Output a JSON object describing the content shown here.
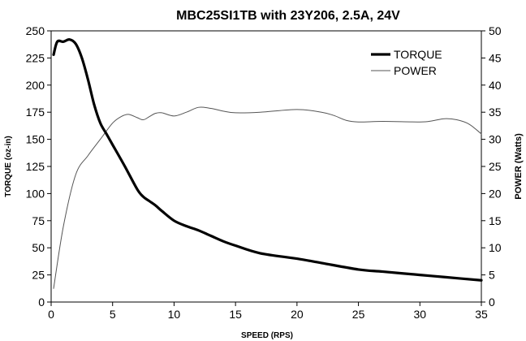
{
  "chart_data": {
    "type": "line",
    "title": "MBC25SI1TB with 23Y206, 2.5A, 24V",
    "xlabel": "SPEED (RPS)",
    "ylabel": "TORQUE (oz-in)",
    "y2label": "POWER (Watts)",
    "xlim": [
      0,
      35
    ],
    "ylim": [
      0,
      250
    ],
    "y2lim": [
      0,
      50
    ],
    "xticks": [
      0,
      5,
      10,
      15,
      20,
      25,
      30,
      35
    ],
    "yticks": [
      0,
      25,
      50,
      75,
      100,
      125,
      150,
      175,
      200,
      225,
      250
    ],
    "y2ticks": [
      0,
      5,
      10,
      15,
      20,
      25,
      30,
      35,
      40,
      45,
      50
    ],
    "grid": false,
    "legend": "top-right",
    "series": [
      {
        "name": "TORQUE",
        "axis": "left",
        "color": "#000000",
        "x": [
          0.2,
          0.5,
          1.0,
          1.5,
          2.0,
          2.5,
          3.0,
          3.5,
          4.0,
          4.5,
          5.0,
          6.0,
          7.0,
          7.5,
          8.0,
          8.5,
          9.0,
          10.0,
          11.0,
          12.0,
          13.0,
          14.0,
          15.0,
          17.0,
          20.0,
          22.0,
          25.0,
          27.0,
          30.0,
          32.0,
          35.0
        ],
        "values": [
          228,
          240,
          240,
          242,
          238,
          225,
          205,
          182,
          165,
          155,
          145,
          125,
          104,
          97,
          93,
          89,
          84,
          75,
          70,
          66,
          61,
          56,
          52,
          45,
          40,
          36,
          30,
          28,
          25,
          23,
          20
        ]
      },
      {
        "name": "POWER",
        "axis": "right",
        "color": "#555555",
        "x": [
          0.2,
          1.0,
          2.0,
          3.0,
          4.0,
          5.0,
          5.7,
          6.3,
          7.0,
          7.5,
          8.0,
          8.5,
          9.0,
          10.0,
          11.0,
          12.0,
          13.0,
          14.0,
          15.0,
          17.0,
          20.0,
          22.0,
          23.0,
          24.0,
          25.0,
          27.0,
          30.0,
          31.0,
          32.0,
          33.0,
          34.0,
          35.0
        ],
        "values": [
          2.5,
          14,
          23.5,
          27,
          30,
          33,
          34.2,
          34.6,
          34.0,
          33.6,
          34.2,
          34.8,
          34.9,
          34.3,
          35.0,
          35.9,
          35.7,
          35.2,
          34.9,
          35.0,
          35.5,
          35.0,
          34.4,
          33.5,
          33.2,
          33.3,
          33.2,
          33.4,
          33.8,
          33.6,
          32.8,
          31.0
        ]
      }
    ]
  }
}
